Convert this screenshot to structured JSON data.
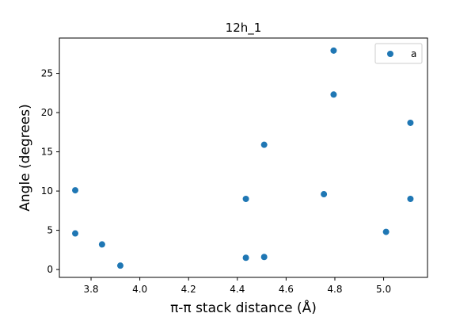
{
  "chart_data": {
    "type": "scatter",
    "title": "12h_1",
    "xlabel": "π-π stack distance (Å)",
    "ylabel": "Angle (degrees)",
    "xlim": [
      3.67,
      5.18
    ],
    "ylim": [
      -1.0,
      29.5
    ],
    "xticks": [
      3.8,
      4.0,
      4.2,
      4.4,
      4.6,
      4.8,
      5.0
    ],
    "yticks": [
      0,
      5,
      10,
      15,
      20,
      25
    ],
    "grid": false,
    "legend_position": "top-right",
    "series": [
      {
        "name": "a",
        "color": "#1f77b4",
        "points": [
          {
            "x": 3.735,
            "y": 10.1
          },
          {
            "x": 3.735,
            "y": 4.6
          },
          {
            "x": 3.845,
            "y": 3.2
          },
          {
            "x": 3.92,
            "y": 0.5
          },
          {
            "x": 4.435,
            "y": 9.0
          },
          {
            "x": 4.435,
            "y": 1.5
          },
          {
            "x": 4.51,
            "y": 15.9
          },
          {
            "x": 4.51,
            "y": 1.6
          },
          {
            "x": 4.755,
            "y": 9.6
          },
          {
            "x": 4.795,
            "y": 27.9
          },
          {
            "x": 4.795,
            "y": 22.3
          },
          {
            "x": 5.01,
            "y": 4.8
          },
          {
            "x": 5.11,
            "y": 18.7
          },
          {
            "x": 5.11,
            "y": 9.0
          }
        ]
      }
    ]
  }
}
